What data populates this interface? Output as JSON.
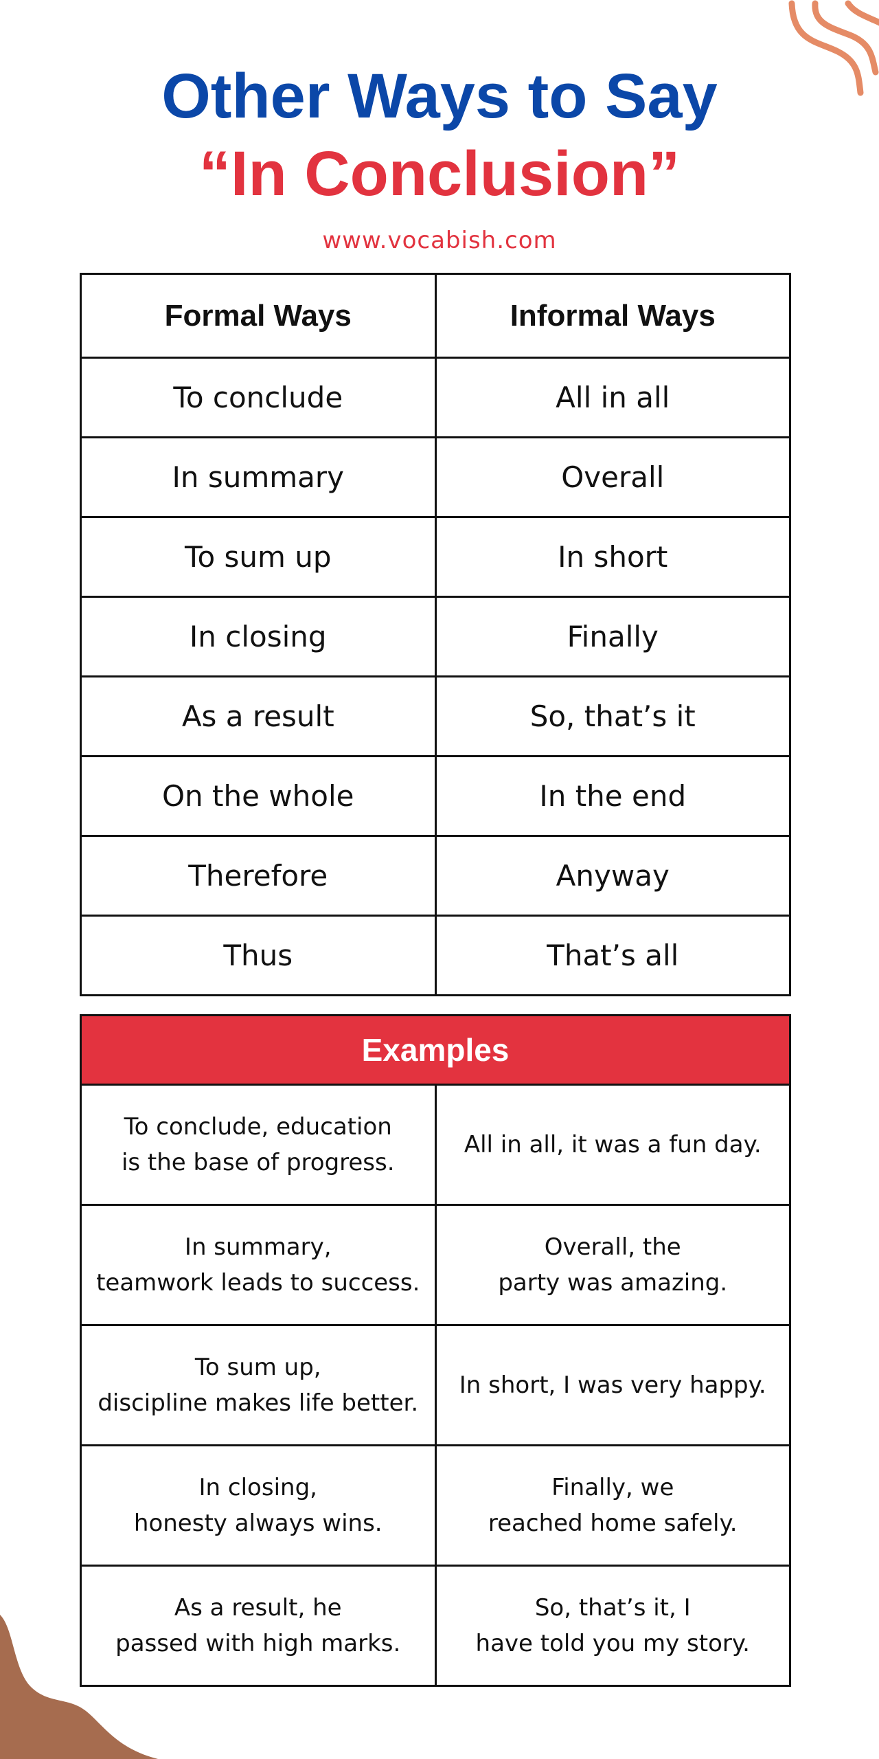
{
  "title": {
    "line1": "Other Ways to Say",
    "line2": "“In Conclusion”",
    "url": "www.vocabish.com"
  },
  "colors": {
    "title_blue": "#0b47a8",
    "accent_red": "#e3333f",
    "wave_orange": "#e58b66",
    "blob_brown": "#a66c4f"
  },
  "ways": {
    "headers": [
      "Formal Ways",
      "Informal Ways"
    ],
    "rows": [
      [
        "To conclude",
        "All in all"
      ],
      [
        "In summary",
        "Overall"
      ],
      [
        "To sum up",
        "In short"
      ],
      [
        "In closing",
        "Finally"
      ],
      [
        "As a result",
        "So, that’s it"
      ],
      [
        "On the whole",
        "In the end"
      ],
      [
        "Therefore",
        "Anyway"
      ],
      [
        "Thus",
        "That’s all"
      ]
    ]
  },
  "examples": {
    "header": "Examples",
    "rows": [
      [
        [
          "To conclude, education",
          "is the base of progress."
        ],
        [
          "All in all, it was a fun day."
        ]
      ],
      [
        [
          "In summary,",
          "teamwork leads to success."
        ],
        [
          "Overall, the",
          "party was amazing."
        ]
      ],
      [
        [
          "To sum up,",
          "discipline makes life better."
        ],
        [
          "In short, I was very happy."
        ]
      ],
      [
        [
          "In closing,",
          "honesty always wins."
        ],
        [
          "Finally, we",
          "reached home safely."
        ]
      ],
      [
        [
          "As a result, he",
          "passed with high marks."
        ],
        [
          "So, that’s it, I",
          "have told you my story."
        ]
      ]
    ]
  }
}
